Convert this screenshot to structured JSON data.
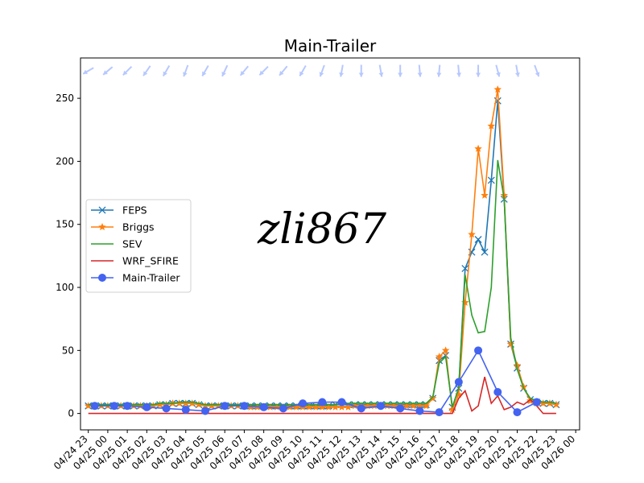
{
  "chart_data": {
    "type": "line",
    "title": "Main-Trailer",
    "xlabel": "",
    "ylabel": "",
    "ylim": [
      -13,
      282
    ],
    "yticks": [
      0,
      50,
      100,
      150,
      200,
      250
    ],
    "xlim": [
      -0.4,
      25.2
    ],
    "xtick_positions": [
      0,
      1,
      2,
      3,
      4,
      5,
      6,
      7,
      8,
      9,
      10,
      11,
      12,
      13,
      14,
      15,
      16,
      17,
      18,
      19,
      20,
      21,
      22,
      23,
      24,
      25
    ],
    "xtick_labels": [
      "04/24 23",
      "04/25 00",
      "04/25 01",
      "04/25 02",
      "04/25 03",
      "04/25 04",
      "04/25 05",
      "04/25 06",
      "04/25 07",
      "04/25 08",
      "04/25 09",
      "04/25 10",
      "04/25 11",
      "04/25 12",
      "04/25 13",
      "04/25 14",
      "04/25 15",
      "04/25 16",
      "04/25 17",
      "04/25 18",
      "04/25 19",
      "04/25 20",
      "04/25 21",
      "04/25 22",
      "04/25 23",
      "04/26 00"
    ],
    "grid": false,
    "legend_position": "center-left",
    "x": [
      0,
      0.33,
      0.67,
      1,
      1.33,
      1.67,
      2,
      2.33,
      2.67,
      3,
      3.33,
      3.67,
      4,
      4.33,
      4.67,
      5,
      5.33,
      5.67,
      6,
      6.33,
      6.67,
      7,
      7.33,
      7.67,
      8,
      8.33,
      8.67,
      9,
      9.33,
      9.67,
      10,
      10.33,
      10.67,
      11,
      11.33,
      11.67,
      12,
      12.33,
      12.67,
      13,
      13.33,
      13.67,
      14,
      14.33,
      14.67,
      15,
      15.33,
      15.67,
      16,
      16.33,
      16.67,
      17,
      17.33,
      17.67,
      18,
      18.33,
      18.67,
      19,
      19.33,
      19.67,
      20,
      20.33,
      20.67,
      21,
      21.33,
      21.67,
      22,
      22.33,
      22.67,
      23,
      23.33,
      23.67,
      24
    ],
    "series": [
      {
        "name": "FEPS",
        "color": "#1f77b4",
        "marker": "x",
        "values": [
          6,
          6,
          6,
          6,
          6,
          6,
          6,
          6,
          6,
          6,
          6,
          7,
          7,
          8,
          8,
          8,
          8,
          7,
          6,
          6,
          6,
          6,
          6,
          6,
          6,
          6,
          6,
          6,
          6,
          6,
          6,
          6,
          6,
          6,
          6,
          6,
          6,
          6,
          7,
          7,
          7,
          7,
          7,
          7,
          7,
          7,
          7,
          7,
          7,
          7,
          7,
          7,
          7,
          12,
          42,
          46,
          5,
          20,
          115,
          128,
          138,
          128,
          185,
          248,
          170,
          55,
          36,
          20,
          11,
          9,
          8,
          8,
          7
        ]
      },
      {
        "name": "Briggs",
        "color": "#ff7f0e",
        "marker": "star",
        "values": [
          6,
          6,
          6,
          6,
          6,
          6,
          6,
          6,
          6,
          6,
          6,
          7,
          7,
          8,
          8,
          8,
          8,
          7,
          6,
          6,
          6,
          6,
          6,
          6,
          6,
          5,
          5,
          5,
          5,
          5,
          5,
          5,
          5,
          5,
          5,
          5,
          5,
          5,
          5,
          5,
          5,
          6,
          6,
          6,
          6,
          6,
          6,
          6,
          6,
          6,
          6,
          6,
          6,
          12,
          45,
          50,
          3,
          15,
          88,
          142,
          210,
          173,
          228,
          257,
          173,
          55,
          38,
          21,
          10,
          8,
          8,
          8,
          7
        ]
      },
      {
        "name": "SEV",
        "color": "#2ca02c",
        "marker": "none",
        "values": [
          7,
          7,
          7,
          7,
          7,
          7,
          7,
          7,
          7,
          7,
          7,
          8,
          8,
          8,
          9,
          9,
          9,
          8,
          7,
          7,
          7,
          7,
          7,
          7,
          7,
          7,
          7,
          7,
          7,
          7,
          7,
          7,
          7,
          7,
          7,
          7,
          7,
          7,
          7,
          8,
          8,
          8,
          8,
          8,
          8,
          8,
          8,
          8,
          8,
          8,
          8,
          8,
          8,
          13,
          40,
          45,
          5,
          20,
          110,
          78,
          64,
          65,
          100,
          201,
          170,
          60,
          35,
          20,
          12,
          10,
          9,
          9,
          8
        ]
      },
      {
        "name": "WRF_SFIRE",
        "color": "#d62728",
        "marker": "none",
        "values": [
          0,
          0,
          0,
          0,
          0,
          0,
          0,
          0,
          0,
          0,
          0,
          0,
          0,
          0,
          0,
          0,
          0,
          0,
          0,
          0,
          0,
          0,
          0,
          0,
          0,
          0,
          0,
          0,
          0,
          0,
          0,
          0,
          0,
          0,
          0,
          0,
          0,
          0,
          0,
          0,
          0,
          0,
          0,
          0,
          0,
          0,
          0,
          0,
          0,
          0,
          0,
          0,
          0,
          0,
          0,
          0,
          0,
          12,
          18,
          2,
          6,
          29,
          8,
          14,
          3,
          5,
          9,
          7,
          11,
          6,
          0,
          0,
          0
        ]
      },
      {
        "name": "Main-Trailer",
        "color": "#4363f0",
        "marker": "circle",
        "values": [
          null,
          6,
          null,
          null,
          6,
          null,
          6,
          null,
          null,
          5,
          null,
          null,
          4,
          null,
          null,
          3,
          null,
          null,
          2,
          null,
          null,
          6,
          null,
          null,
          6,
          null,
          null,
          5,
          null,
          null,
          4,
          null,
          null,
          8,
          null,
          null,
          9,
          null,
          null,
          9,
          null,
          null,
          4,
          null,
          null,
          6,
          null,
          null,
          4,
          null,
          null,
          2,
          null,
          null,
          1,
          null,
          null,
          25,
          null,
          null,
          50,
          null,
          null,
          17,
          null,
          null,
          1,
          null,
          null,
          9,
          null,
          null,
          null
        ]
      }
    ],
    "wind_arrows": {
      "color": "#b7c8ff",
      "hours": [
        0,
        1,
        2,
        3,
        4,
        5,
        6,
        7,
        8,
        9,
        10,
        11,
        12,
        13,
        14,
        15,
        16,
        17,
        18,
        19,
        20,
        21,
        22,
        23
      ],
      "directions_deg": [
        210,
        220,
        225,
        235,
        240,
        250,
        240,
        245,
        230,
        225,
        230,
        240,
        250,
        260,
        270,
        280,
        270,
        275,
        265,
        275,
        270,
        285,
        280,
        290
      ]
    }
  },
  "watermark": {
    "text": "zli867"
  }
}
